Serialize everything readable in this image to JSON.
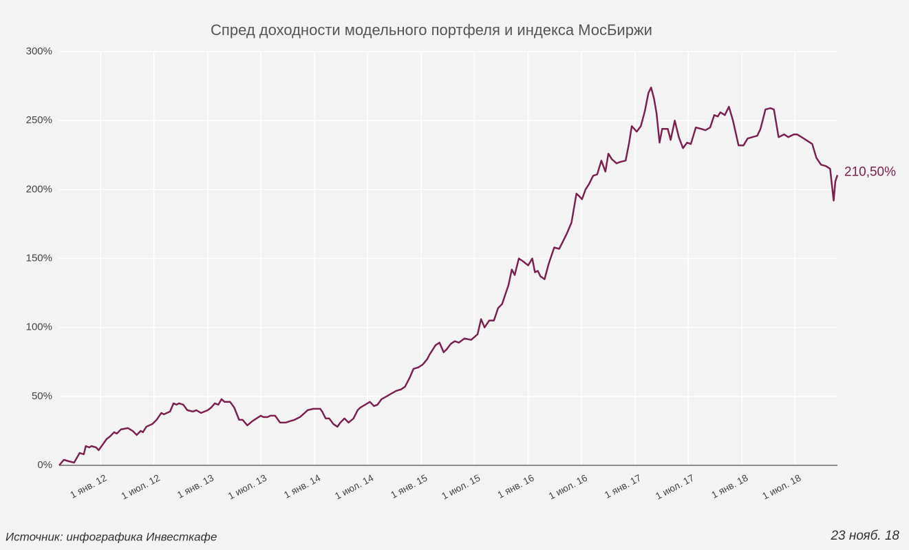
{
  "chart_data": {
    "type": "line",
    "title": "Спред доходности модельного портфеля и индекса МосБиржи",
    "source": "Источник: инфографика Инвесткафе",
    "date_label": "23 нояб. 18",
    "end_label": "210,50%",
    "color": "#7b2150",
    "grid": true,
    "xlim": [
      "2011-08-12",
      "2018-11-23"
    ],
    "xticks": [
      {
        "value": "2012-01-01",
        "label": "1 янв. 12"
      },
      {
        "value": "2012-07-01",
        "label": "1 июл. 12"
      },
      {
        "value": "2013-01-01",
        "label": "1 янв. 13"
      },
      {
        "value": "2013-07-01",
        "label": "1 июл. 13"
      },
      {
        "value": "2014-01-01",
        "label": "1 янв. 14"
      },
      {
        "value": "2014-07-01",
        "label": "1 июл. 14"
      },
      {
        "value": "2015-01-01",
        "label": "1 янв. 15"
      },
      {
        "value": "2015-07-01",
        "label": "1 июл. 15"
      },
      {
        "value": "2016-01-01",
        "label": "1 янв. 16"
      },
      {
        "value": "2016-07-01",
        "label": "1 июл. 16"
      },
      {
        "value": "2017-01-01",
        "label": "1 янв. 17"
      },
      {
        "value": "2017-07-01",
        "label": "1 июл. 17"
      },
      {
        "value": "2018-01-01",
        "label": "1 янв. 18"
      },
      {
        "value": "2018-07-01",
        "label": "1 июл. 18"
      }
    ],
    "ylim": [
      0,
      300
    ],
    "yticks": [
      {
        "value": 0,
        "label": "0%"
      },
      {
        "value": 50,
        "label": "50%"
      },
      {
        "value": 100,
        "label": "100%"
      },
      {
        "value": 150,
        "label": "150%"
      },
      {
        "value": 200,
        "label": "200%"
      },
      {
        "value": 250,
        "label": "250%"
      },
      {
        "value": 300,
        "label": "300%"
      }
    ],
    "x": [
      "2011-08-12",
      "2011-08-28",
      "2011-09-13",
      "2011-10-02",
      "2011-10-21",
      "2011-11-04",
      "2011-11-11",
      "2011-11-23",
      "2011-11-30",
      "2011-12-16",
      "2011-12-25",
      "2012-01-21",
      "2012-02-02",
      "2012-02-16",
      "2012-02-25",
      "2012-03-10",
      "2012-04-03",
      "2012-04-19",
      "2012-05-03",
      "2012-05-17",
      "2012-05-24",
      "2012-06-05",
      "2012-06-26",
      "2012-07-10",
      "2012-07-26",
      "2012-08-04",
      "2012-08-25",
      "2012-09-06",
      "2012-09-16",
      "2012-09-25",
      "2012-10-09",
      "2012-10-23",
      "2012-11-11",
      "2012-11-23",
      "2012-12-09",
      "2013-01-01",
      "2013-01-13",
      "2013-01-25",
      "2013-02-06",
      "2013-02-17",
      "2013-02-27",
      "2013-03-18",
      "2013-04-01",
      "2013-04-18",
      "2013-04-30",
      "2013-05-16",
      "2013-06-02",
      "2013-06-16",
      "2013-07-01",
      "2013-07-10",
      "2013-07-24",
      "2013-08-03",
      "2013-08-19",
      "2013-09-05",
      "2013-09-24",
      "2013-10-08",
      "2013-10-24",
      "2013-11-12",
      "2013-11-28",
      "2013-12-08",
      "2013-12-27",
      "2014-01-20",
      "2014-01-27",
      "2014-02-08",
      "2014-02-20",
      "2014-03-06",
      "2014-03-20",
      "2014-03-30",
      "2014-04-13",
      "2014-04-27",
      "2014-05-14",
      "2014-05-28",
      "2014-06-07",
      "2014-06-23",
      "2014-07-09",
      "2014-07-23",
      "2014-08-04",
      "2014-08-18",
      "2014-09-04",
      "2014-09-20",
      "2014-10-07",
      "2014-10-23",
      "2014-11-06",
      "2014-11-23",
      "2014-12-05",
      "2014-12-21",
      "2015-01-05",
      "2015-01-21",
      "2015-01-28",
      "2015-02-09",
      "2015-02-18",
      "2015-03-04",
      "2015-03-18",
      "2015-03-28",
      "2015-04-11",
      "2015-04-25",
      "2015-05-09",
      "2015-05-28",
      "2015-06-20",
      "2015-07-12",
      "2015-07-24",
      "2015-08-05",
      "2015-08-21",
      "2015-09-06",
      "2015-09-20",
      "2015-10-04",
      "2015-10-26",
      "2015-11-06",
      "2015-11-16",
      "2015-11-30",
      "2015-12-14",
      "2016-01-01",
      "2016-01-15",
      "2016-01-24",
      "2016-02-03",
      "2016-02-12",
      "2016-02-26",
      "2016-03-11",
      "2016-03-30",
      "2016-04-16",
      "2016-04-28",
      "2016-05-12",
      "2016-05-28",
      "2016-06-14",
      "2016-06-24",
      "2016-07-03",
      "2016-07-15",
      "2016-07-27",
      "2016-08-10",
      "2016-08-24",
      "2016-09-07",
      "2016-09-21",
      "2016-10-01",
      "2016-10-13",
      "2016-10-29",
      "2016-11-10",
      "2016-11-29",
      "2016-12-11",
      "2016-12-20",
      "2017-01-06",
      "2017-01-20",
      "2017-02-03",
      "2017-02-15",
      "2017-02-24",
      "2017-03-06",
      "2017-03-15",
      "2017-03-25",
      "2017-04-03",
      "2017-04-22",
      "2017-05-02",
      "2017-05-16",
      "2017-05-30",
      "2017-06-13",
      "2017-06-27",
      "2017-07-10",
      "2017-07-27",
      "2017-08-14",
      "2017-08-29",
      "2017-09-14",
      "2017-09-28",
      "2017-10-10",
      "2017-10-19",
      "2017-11-03",
      "2017-11-17",
      "2017-12-01",
      "2017-12-20",
      "2018-01-06",
      "2018-01-20",
      "2018-02-05",
      "2018-02-22",
      "2018-03-05",
      "2018-03-22",
      "2018-04-08",
      "2018-04-20",
      "2018-05-06",
      "2018-05-25",
      "2018-06-08",
      "2018-06-27",
      "2018-07-08",
      "2018-07-31",
      "2018-08-29",
      "2018-09-12",
      "2018-09-28",
      "2018-10-15",
      "2018-10-29",
      "2018-11-10",
      "2018-11-16",
      "2018-11-23"
    ],
    "values": [
      0,
      4,
      3,
      2,
      9,
      8,
      14,
      13,
      14,
      13,
      11,
      19,
      21,
      24,
      23,
      26,
      27,
      25,
      22,
      25,
      24,
      28,
      30,
      33,
      38,
      37,
      39,
      45,
      44,
      45,
      44,
      40,
      39,
      40,
      38,
      40,
      42,
      45,
      44,
      48,
      46,
      46,
      42,
      33,
      33,
      29,
      32,
      34,
      36,
      35,
      35,
      36,
      36,
      31,
      31,
      32,
      33,
      35,
      38,
      40,
      41,
      41,
      39,
      34,
      34,
      30,
      28,
      31,
      34,
      31,
      34,
      40,
      42,
      44,
      46,
      43,
      44,
      48,
      50,
      52,
      54,
      55,
      57,
      64,
      70,
      71,
      73,
      77,
      80,
      84,
      87,
      89,
      82,
      84,
      88,
      90,
      89,
      92,
      91,
      95,
      106,
      100,
      105,
      105,
      114,
      117,
      131,
      142,
      138,
      150,
      148,
      145,
      150,
      140,
      141,
      137,
      135,
      146,
      158,
      157,
      162,
      168,
      176,
      197,
      195,
      193,
      200,
      204,
      210,
      211,
      221,
      213,
      226,
      222,
      219,
      220,
      221,
      234,
      246,
      242,
      246,
      257,
      270,
      274,
      266,
      255,
      234,
      244,
      244,
      236,
      250,
      238,
      230,
      234,
      233,
      245,
      244,
      243,
      245,
      254,
      253,
      256,
      254,
      260,
      250,
      232,
      232,
      237,
      238,
      239,
      244,
      258,
      259,
      258,
      238,
      240,
      238,
      240,
      240,
      237,
      233,
      223,
      218,
      217,
      215,
      192,
      206,
      210.5
    ]
  }
}
